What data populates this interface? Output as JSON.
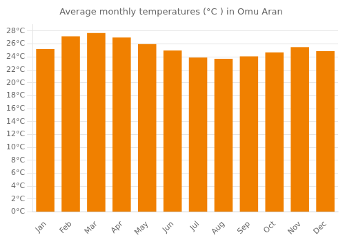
{
  "chart_data": {
    "type": "bar",
    "title": "Average monthly temperatures (°C ) in Omu Aran",
    "categories": [
      "Jan",
      "Feb",
      "Mar",
      "Apr",
      "May",
      "Jun",
      "Jul",
      "Aug",
      "Sep",
      "Oct",
      "Nov",
      "Dec"
    ],
    "values": [
      25.2,
      27.2,
      27.7,
      27.0,
      26.0,
      25.0,
      23.9,
      23.7,
      24.1,
      24.7,
      25.5,
      24.9
    ],
    "color": "#F08000",
    "ylim": [
      0,
      29
    ],
    "yticks": [
      {
        "value": 0,
        "label": "0°C"
      },
      {
        "value": 2,
        "label": "2°C"
      },
      {
        "value": 4,
        "label": "4°C"
      },
      {
        "value": 6,
        "label": "6°C"
      },
      {
        "value": 8,
        "label": "8°C"
      },
      {
        "value": 10,
        "label": "10°C"
      },
      {
        "value": 12,
        "label": "12°C"
      },
      {
        "value": 14,
        "label": "14°C"
      },
      {
        "value": 16,
        "label": "16°C"
      },
      {
        "value": 18,
        "label": "18°C"
      },
      {
        "value": 20,
        "label": "20°C"
      },
      {
        "value": 22,
        "label": "22°C"
      },
      {
        "value": 24,
        "label": "24°C"
      },
      {
        "value": 26,
        "label": "26°C"
      },
      {
        "value": 28,
        "label": "28°C"
      }
    ],
    "grid": true
  }
}
